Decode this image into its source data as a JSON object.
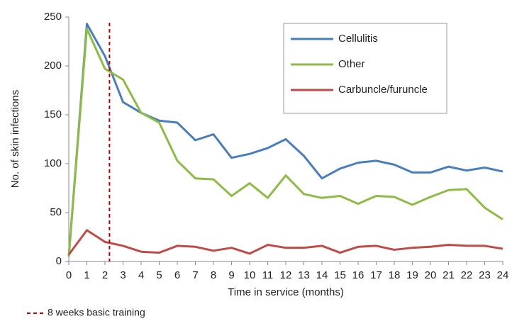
{
  "chart_data": {
    "type": "line",
    "x_label": "Time in service (months)",
    "y_label": "No. of skin infections",
    "x": [
      0,
      1,
      2,
      3,
      4,
      5,
      6,
      7,
      8,
      9,
      10,
      11,
      12,
      13,
      14,
      15,
      16,
      17,
      18,
      19,
      20,
      21,
      22,
      23,
      24
    ],
    "xlim": [
      0,
      24
    ],
    "xticks": [
      0,
      1,
      2,
      3,
      4,
      5,
      6,
      7,
      8,
      9,
      10,
      11,
      12,
      13,
      14,
      15,
      16,
      17,
      18,
      19,
      20,
      21,
      22,
      23,
      24
    ],
    "ylim": [
      0,
      250
    ],
    "yticks": [
      0,
      50,
      100,
      150,
      200,
      250
    ],
    "legend": "upper right",
    "series": [
      {
        "name": "Cellulitis",
        "color": "#4a7ebb",
        "values": [
          5,
          243,
          210,
          163,
          152,
          144,
          142,
          124,
          130,
          106,
          110,
          116,
          125,
          108,
          85,
          95,
          101,
          103,
          99,
          91,
          91,
          97,
          93,
          96,
          92
        ]
      },
      {
        "name": "Other",
        "color": "#8dbb46",
        "values": [
          5,
          238,
          197,
          186,
          152,
          142,
          103,
          85,
          84,
          67,
          80,
          65,
          88,
          69,
          65,
          67,
          59,
          67,
          66,
          58,
          66,
          73,
          74,
          55,
          43
        ]
      },
      {
        "name": "Carbuncle/furuncle",
        "color": "#be4b48",
        "values": [
          7,
          32,
          20,
          16,
          10,
          9,
          16,
          15,
          11,
          14,
          8,
          17,
          14,
          14,
          16,
          9,
          15,
          16,
          12,
          14,
          15,
          17,
          16,
          16,
          13
        ]
      }
    ],
    "reference_line": {
      "x": 2.25,
      "label": "8 weeks basic training",
      "color": "#c00000"
    }
  }
}
